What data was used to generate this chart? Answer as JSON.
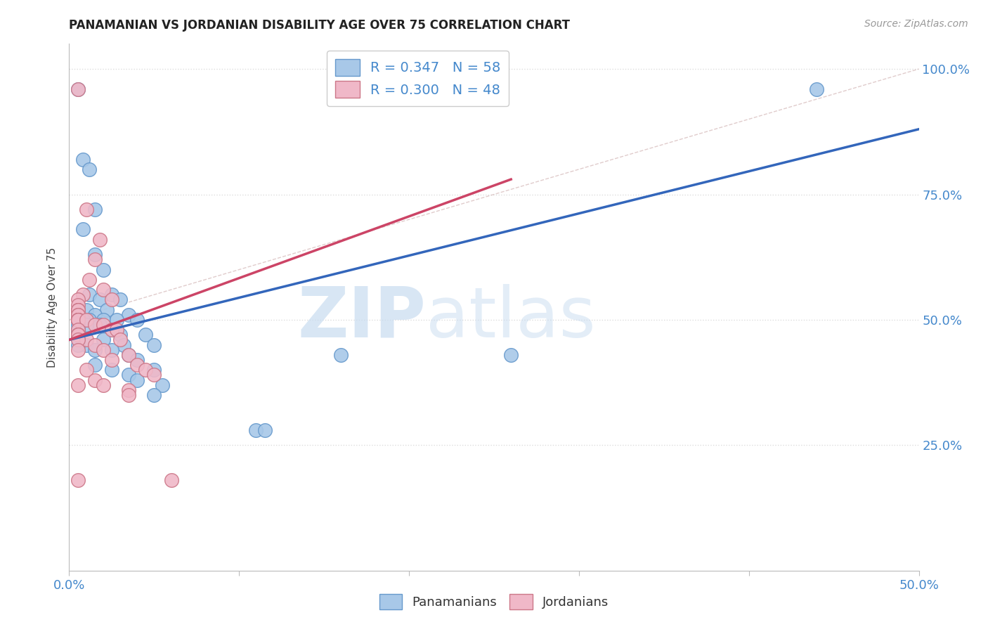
{
  "title": "PANAMANIAN VS JORDANIAN DISABILITY AGE OVER 75 CORRELATION CHART",
  "source_text": "Source: ZipAtlas.com",
  "ylabel": "Disability Age Over 75",
  "xlim": [
    0.0,
    0.5
  ],
  "ylim": [
    0.0,
    1.05
  ],
  "xtick_labels": [
    "0.0%",
    "",
    "",
    "",
    "",
    "50.0%"
  ],
  "xtick_vals": [
    0.0,
    0.1,
    0.2,
    0.3,
    0.4,
    0.5
  ],
  "ytick_labels": [
    "25.0%",
    "50.0%",
    "75.0%",
    "100.0%"
  ],
  "ytick_vals": [
    0.25,
    0.5,
    0.75,
    1.0
  ],
  "blue_color": "#A8C8E8",
  "pink_color": "#F0B8C8",
  "blue_edge_color": "#6699CC",
  "pink_edge_color": "#CC7788",
  "blue_line_color": "#3366BB",
  "pink_line_color": "#CC4466",
  "legend_r_blue": "0.347",
  "legend_n_blue": "58",
  "legend_r_pink": "0.300",
  "legend_n_pink": "48",
  "legend_label_blue": "Panamanians",
  "legend_label_pink": "Jordanians",
  "blue_scatter": [
    [
      0.005,
      0.96
    ],
    [
      0.008,
      0.82
    ],
    [
      0.012,
      0.8
    ],
    [
      0.015,
      0.72
    ],
    [
      0.008,
      0.68
    ],
    [
      0.015,
      0.63
    ],
    [
      0.02,
      0.6
    ],
    [
      0.012,
      0.55
    ],
    [
      0.025,
      0.55
    ],
    [
      0.018,
      0.54
    ],
    [
      0.03,
      0.54
    ],
    [
      0.022,
      0.52
    ],
    [
      0.01,
      0.52
    ],
    [
      0.015,
      0.51
    ],
    [
      0.035,
      0.51
    ],
    [
      0.02,
      0.5
    ],
    [
      0.012,
      0.5
    ],
    [
      0.008,
      0.5
    ],
    [
      0.005,
      0.5
    ],
    [
      0.005,
      0.5
    ],
    [
      0.005,
      0.5
    ],
    [
      0.005,
      0.5
    ],
    [
      0.005,
      0.5
    ],
    [
      0.005,
      0.5
    ],
    [
      0.04,
      0.5
    ],
    [
      0.028,
      0.5
    ],
    [
      0.018,
      0.49
    ],
    [
      0.01,
      0.49
    ],
    [
      0.005,
      0.49
    ],
    [
      0.005,
      0.48
    ],
    [
      0.025,
      0.48
    ],
    [
      0.005,
      0.48
    ],
    [
      0.005,
      0.47
    ],
    [
      0.03,
      0.47
    ],
    [
      0.005,
      0.47
    ],
    [
      0.045,
      0.47
    ],
    [
      0.005,
      0.46
    ],
    [
      0.02,
      0.46
    ],
    [
      0.032,
      0.45
    ],
    [
      0.01,
      0.45
    ],
    [
      0.05,
      0.45
    ],
    [
      0.005,
      0.45
    ],
    [
      0.025,
      0.44
    ],
    [
      0.015,
      0.44
    ],
    [
      0.035,
      0.43
    ],
    [
      0.04,
      0.42
    ],
    [
      0.015,
      0.41
    ],
    [
      0.025,
      0.4
    ],
    [
      0.05,
      0.4
    ],
    [
      0.035,
      0.39
    ],
    [
      0.04,
      0.38
    ],
    [
      0.055,
      0.37
    ],
    [
      0.05,
      0.35
    ],
    [
      0.11,
      0.28
    ],
    [
      0.115,
      0.28
    ],
    [
      0.16,
      0.43
    ],
    [
      0.26,
      0.43
    ],
    [
      0.44,
      0.96
    ]
  ],
  "pink_scatter": [
    [
      0.005,
      0.96
    ],
    [
      0.01,
      0.72
    ],
    [
      0.018,
      0.66
    ],
    [
      0.015,
      0.62
    ],
    [
      0.012,
      0.58
    ],
    [
      0.02,
      0.56
    ],
    [
      0.008,
      0.55
    ],
    [
      0.025,
      0.54
    ],
    [
      0.005,
      0.54
    ],
    [
      0.005,
      0.53
    ],
    [
      0.005,
      0.52
    ],
    [
      0.005,
      0.52
    ],
    [
      0.005,
      0.52
    ],
    [
      0.005,
      0.51
    ],
    [
      0.005,
      0.51
    ],
    [
      0.005,
      0.5
    ],
    [
      0.005,
      0.5
    ],
    [
      0.005,
      0.5
    ],
    [
      0.005,
      0.5
    ],
    [
      0.005,
      0.5
    ],
    [
      0.01,
      0.5
    ],
    [
      0.015,
      0.49
    ],
    [
      0.02,
      0.49
    ],
    [
      0.025,
      0.48
    ],
    [
      0.005,
      0.48
    ],
    [
      0.028,
      0.48
    ],
    [
      0.005,
      0.47
    ],
    [
      0.005,
      0.47
    ],
    [
      0.005,
      0.47
    ],
    [
      0.01,
      0.46
    ],
    [
      0.03,
      0.46
    ],
    [
      0.005,
      0.46
    ],
    [
      0.015,
      0.45
    ],
    [
      0.02,
      0.44
    ],
    [
      0.005,
      0.44
    ],
    [
      0.035,
      0.43
    ],
    [
      0.025,
      0.42
    ],
    [
      0.04,
      0.41
    ],
    [
      0.01,
      0.4
    ],
    [
      0.045,
      0.4
    ],
    [
      0.05,
      0.39
    ],
    [
      0.015,
      0.38
    ],
    [
      0.005,
      0.37
    ],
    [
      0.02,
      0.37
    ],
    [
      0.035,
      0.36
    ],
    [
      0.035,
      0.35
    ],
    [
      0.005,
      0.18
    ],
    [
      0.06,
      0.18
    ]
  ],
  "blue_trend_x": [
    0.0,
    0.5
  ],
  "blue_trend_y": [
    0.46,
    0.88
  ],
  "pink_trend_x": [
    0.0,
    0.26
  ],
  "pink_trend_y": [
    0.46,
    0.78
  ],
  "ref_line_x": [
    0.0,
    0.5
  ],
  "ref_line_y": [
    0.5,
    1.0
  ],
  "background_color": "#FFFFFF",
  "grid_color": "#DDDDDD",
  "title_color": "#222222",
  "tick_color": "#4488CC"
}
